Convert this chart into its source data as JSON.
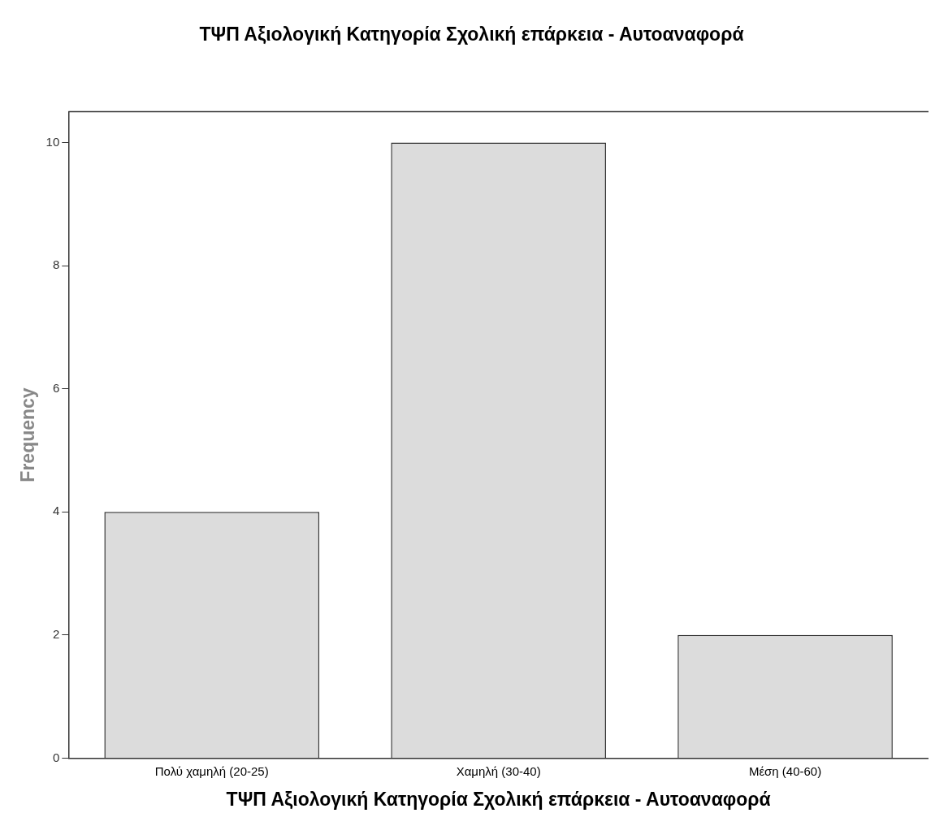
{
  "chart_data": {
    "type": "bar",
    "title": "ΤΨΠ Αξιολογική Κατηγορία Σχολική επάρκεια - Αυτοαναφορά",
    "xlabel": "ΤΨΠ Αξιολογική Κατηγορία Σχολική επάρκεια - Αυτοαναφορά",
    "ylabel": "Frequency",
    "categories": [
      "Πολύ χαμηλή (20-25)",
      "Χαμηλή (30-40)",
      "Μέση (40-60)"
    ],
    "values": [
      4,
      10,
      2
    ],
    "color": "#dcdcdc",
    "ylim": [
      0,
      10.5
    ],
    "yticks": [
      0,
      2,
      4,
      6,
      8,
      10
    ],
    "grid": false,
    "legend": false
  }
}
